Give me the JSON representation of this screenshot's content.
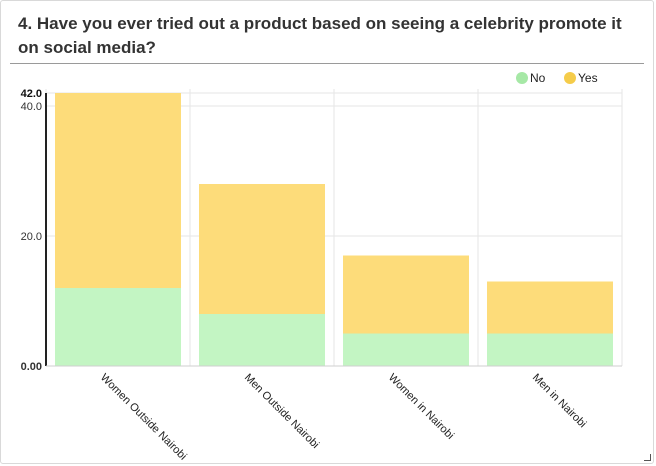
{
  "question": {
    "title": "4. Have you ever tried out a product based on seeing a celebrity promote it on social media?"
  },
  "chart_data": {
    "type": "bar",
    "stacked": true,
    "categories": [
      "Women Outside Nairobi",
      "Men Outside Nairobi",
      "Women in Nairobi",
      "Men in Nairobi"
    ],
    "series": [
      {
        "name": "No",
        "values": [
          12,
          8,
          5,
          5
        ],
        "color": "#c3f5c3"
      },
      {
        "name": "Yes",
        "values": [
          30,
          20,
          12,
          8
        ],
        "color": "#fddc7a"
      }
    ],
    "yticks": [
      "0.00",
      "20.0",
      "40.0"
    ],
    "ymax_label": "42.0",
    "ylim": [
      0,
      42
    ],
    "grid": true,
    "legend_position": "top-right",
    "legend_marker_colors": {
      "No": "#a6e8a6",
      "Yes": "#f5cc4a"
    }
  }
}
